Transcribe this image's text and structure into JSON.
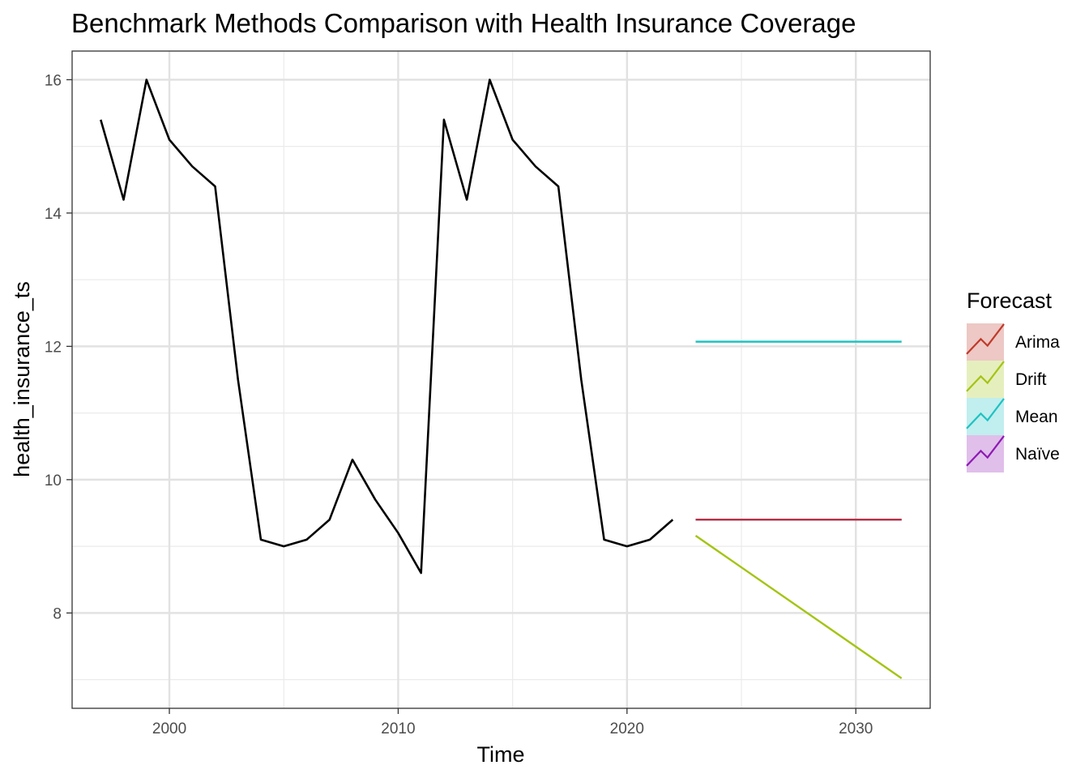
{
  "chart_data": {
    "type": "line",
    "title": "Benchmark Methods Comparison with Health Insurance Coverage",
    "xlabel": "Time",
    "ylabel": "health_insurance_ts",
    "xlim": [
      1995.75,
      2033.25
    ],
    "ylim": [
      6.57,
      16.43
    ],
    "x_ticks": [
      2000,
      2010,
      2020,
      2030
    ],
    "y_ticks": [
      8,
      10,
      12,
      14,
      16
    ],
    "grid": true,
    "legend": {
      "title": "Forecast",
      "position": "right"
    },
    "observed": {
      "x": [
        1997,
        1998,
        1999,
        2000,
        2001,
        2002,
        2003,
        2004,
        2005,
        2006,
        2007,
        2008,
        2009,
        2010,
        2011,
        2012,
        2013,
        2014,
        2015,
        2016,
        2017,
        2018,
        2019,
        2020,
        2021,
        2022
      ],
      "y": [
        15.4,
        14.2,
        16.0,
        15.1,
        14.7,
        14.4,
        11.5,
        9.1,
        9.0,
        9.1,
        9.4,
        10.3,
        9.7,
        9.2,
        8.6,
        15.4,
        14.2,
        16.0,
        15.1,
        14.7,
        14.4,
        11.5,
        9.1,
        9.0,
        9.1,
        9.4
      ],
      "color": "#000000"
    },
    "series": [
      {
        "name": "Arima",
        "color": "#C0392B",
        "x": [
          2023,
          2032
        ],
        "y": [
          9.4,
          9.4
        ]
      },
      {
        "name": "Drift",
        "color": "#A3C414",
        "x": [
          2023,
          2032
        ],
        "y": [
          9.16,
          7.02
        ]
      },
      {
        "name": "Mean",
        "color": "#1FC2C2",
        "x": [
          2023,
          2032
        ],
        "y": [
          12.07,
          12.07
        ]
      },
      {
        "name": "Naïve",
        "color": "#8E1AB4",
        "x": [
          2023,
          2032
        ],
        "y": [
          9.4,
          9.4
        ]
      }
    ]
  }
}
